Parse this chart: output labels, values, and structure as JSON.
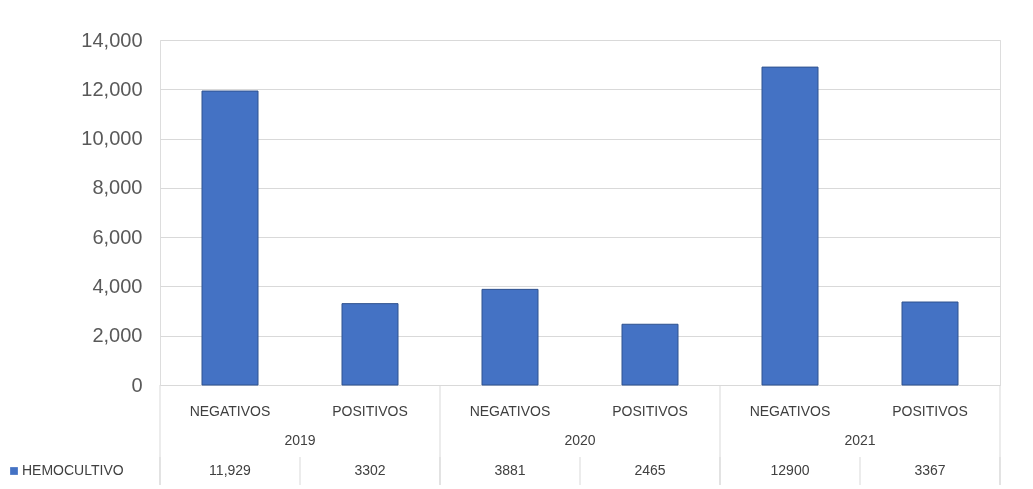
{
  "chart_data": {
    "type": "bar",
    "categories": [
      "NEGATIVOS",
      "POSITIVOS",
      "NEGATIVOS",
      "POSITIVOS",
      "NEGATIVOS",
      "POSITIVOS"
    ],
    "annotations": [
      "2019",
      "2020",
      "2021"
    ],
    "series": [
      {
        "name": "HEMOCULTIVO",
        "color": "#4472c4",
        "values": [
          11929,
          3302,
          3881,
          2465,
          12900,
          3367
        ],
        "value_labels": [
          "11,929",
          "3302",
          "3881",
          "2465",
          "12900",
          "3367"
        ]
      }
    ],
    "ylim": [
      0,
      14000
    ],
    "yticks": [
      {
        "value": 0,
        "label": "0"
      },
      {
        "value": 2000,
        "label": "2,000"
      },
      {
        "value": 4000,
        "label": "4,000"
      },
      {
        "value": 6000,
        "label": "6,000"
      },
      {
        "value": 8000,
        "label": "8,000"
      },
      {
        "value": 10000,
        "label": "10,000"
      },
      {
        "value": 12000,
        "label": "12,000"
      },
      {
        "value": 14000,
        "label": "14,000"
      }
    ],
    "grid": "y",
    "legend": "bottom left"
  }
}
